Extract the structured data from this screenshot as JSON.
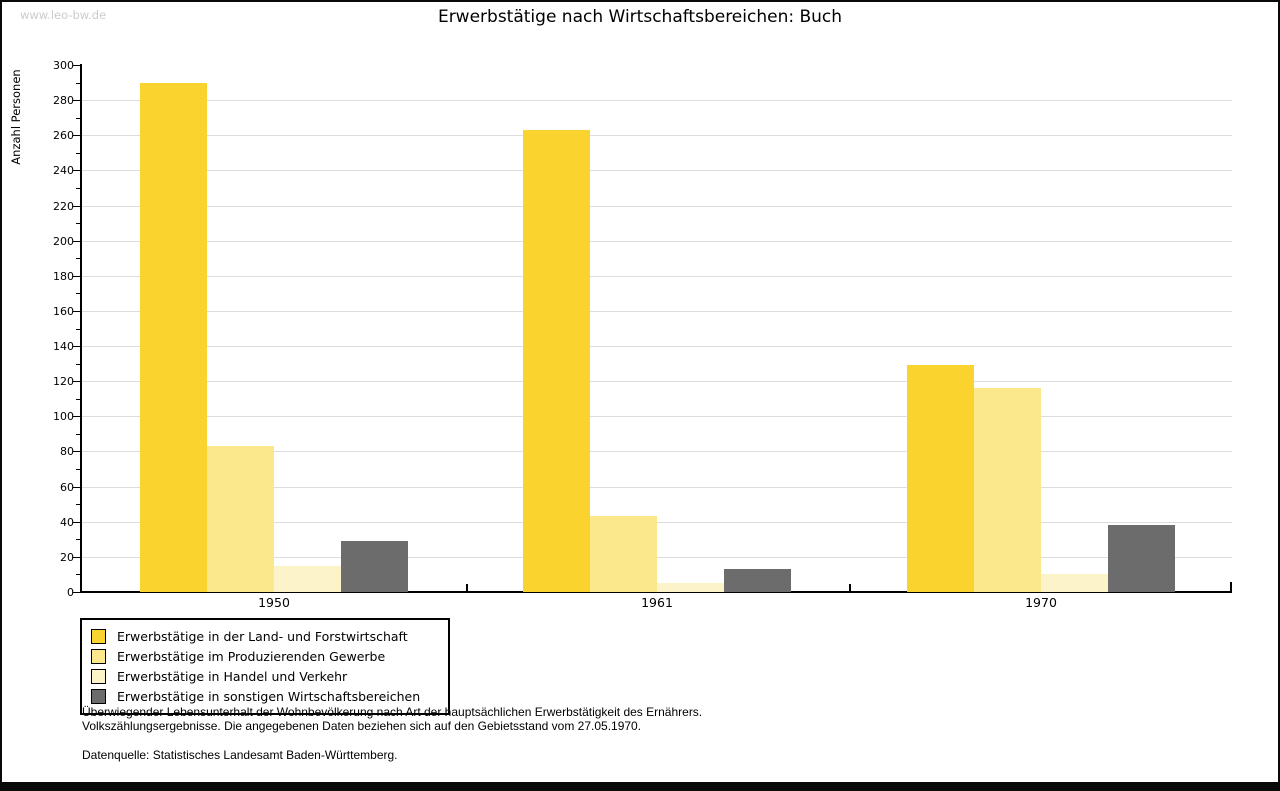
{
  "frame": {
    "watermark": "www.leo-bw.de"
  },
  "title": "Erwerbstätige nach Wirtschaftsbereichen: Buch",
  "chart_data": {
    "type": "bar",
    "title": "Erwerbstätige nach Wirtschaftsbereichen: Buch",
    "ylabel": "Anzahl Personen",
    "xlabel": "",
    "categories": [
      "1950",
      "1961",
      "1970"
    ],
    "series": [
      {
        "name": "Erwerbstätige in der Land- und Forstwirtschaft",
        "color": "#FBD32E",
        "values": [
          290,
          263,
          129
        ]
      },
      {
        "name": "Erwerbstätige im Produzierenden Gewerbe",
        "color": "#FBE88D",
        "values": [
          83,
          43,
          116
        ]
      },
      {
        "name": "Erwerbstätige in Handel und Verkehr",
        "color": "#FCF3C8",
        "values": [
          15,
          5,
          10
        ]
      },
      {
        "name": "Erwerbstätige in sonstigen Wirtschaftsbereichen",
        "color": "#6C6C6C",
        "values": [
          29,
          13,
          38
        ]
      }
    ],
    "ylim": [
      0,
      300
    ],
    "ytick_step_major": 20,
    "ytick_step_minor": 10,
    "grid": true,
    "gridline_color": "#DDDDDD",
    "legend_position": "below-left"
  },
  "footnote": {
    "line1": "Überwiegender Lebensunterhalt der Wohnbevölkerung nach Art der hauptsächlichen Erwerbstätigkeit des Ernährers.",
    "line2": "Volkszählungsergebnisse. Die angegebenen Daten beziehen sich auf den Gebietsstand vom 27.05.1970."
  },
  "source": "Datenquelle: Statistisches Landesamt Baden-Württemberg."
}
